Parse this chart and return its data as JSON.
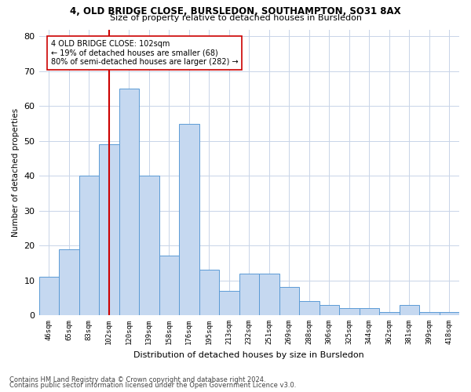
{
  "title1": "4, OLD BRIDGE CLOSE, BURSLEDON, SOUTHAMPTON, SO31 8AX",
  "title2": "Size of property relative to detached houses in Bursledon",
  "xlabel": "Distribution of detached houses by size in Bursledon",
  "ylabel": "Number of detached properties",
  "categories": [
    "46sqm",
    "65sqm",
    "83sqm",
    "102sqm",
    "120sqm",
    "139sqm",
    "158sqm",
    "176sqm",
    "195sqm",
    "213sqm",
    "232sqm",
    "251sqm",
    "269sqm",
    "288sqm",
    "306sqm",
    "325sqm",
    "344sqm",
    "362sqm",
    "381sqm",
    "399sqm",
    "418sqm"
  ],
  "values": [
    11,
    19,
    40,
    49,
    65,
    40,
    17,
    55,
    13,
    7,
    12,
    12,
    8,
    4,
    3,
    2,
    2,
    1,
    3,
    1,
    1
  ],
  "bar_color": "#c5d8f0",
  "bar_edge_color": "#5b9bd5",
  "vline_x_index": 3,
  "vline_color": "#cc0000",
  "annotation_line1": "4 OLD BRIDGE CLOSE: 102sqm",
  "annotation_line2": "← 19% of detached houses are smaller (68)",
  "annotation_line3": "80% of semi-detached houses are larger (282) →",
  "annotation_box_color": "#ffffff",
  "annotation_box_edge_color": "#cc0000",
  "ylim": [
    0,
    82
  ],
  "yticks": [
    0,
    10,
    20,
    30,
    40,
    50,
    60,
    70,
    80
  ],
  "footer1": "Contains HM Land Registry data © Crown copyright and database right 2024.",
  "footer2": "Contains public sector information licensed under the Open Government Licence v3.0.",
  "grid_color": "#c8d4e8"
}
